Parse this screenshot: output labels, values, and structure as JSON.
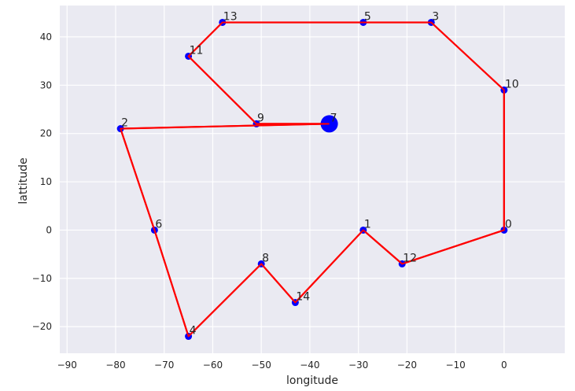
{
  "chart_data": {
    "type": "scatter",
    "title": "",
    "xlabel": "longitude",
    "ylabel": "lattitude",
    "xlim": [
      -91.5,
      12.5
    ],
    "ylim": [
      -25.5,
      46.5
    ],
    "xticks": [
      -90,
      -80,
      -70,
      -60,
      -50,
      -40,
      -30,
      -20,
      -10,
      0
    ],
    "yticks": [
      -20,
      -10,
      0,
      10,
      20,
      30,
      40
    ],
    "grid": true,
    "background": "#eaeaf2",
    "point_color": "#0000ff",
    "path_color": "#ff0000",
    "points": [
      {
        "label": "0",
        "x": 0,
        "y": 0
      },
      {
        "label": "1",
        "x": -29,
        "y": 0
      },
      {
        "label": "2",
        "x": -79,
        "y": 21
      },
      {
        "label": "3",
        "x": -15,
        "y": 43
      },
      {
        "label": "4",
        "x": -65,
        "y": -22
      },
      {
        "label": "5",
        "x": -29,
        "y": 43
      },
      {
        "label": "6",
        "x": -72,
        "y": 0
      },
      {
        "label": "7",
        "x": -36,
        "y": 22,
        "highlight": true
      },
      {
        "label": "8",
        "x": -50,
        "y": -7
      },
      {
        "label": "9",
        "x": -51,
        "y": 22
      },
      {
        "label": "10",
        "x": 0,
        "y": 29
      },
      {
        "label": "11",
        "x": -65,
        "y": 36
      },
      {
        "label": "12",
        "x": -21,
        "y": -7
      },
      {
        "label": "13",
        "x": -58,
        "y": 43
      },
      {
        "label": "14",
        "x": -43,
        "y": -15
      }
    ],
    "route": [
      "7",
      "2",
      "6",
      "4",
      "8",
      "14",
      "1",
      "12",
      "0",
      "10",
      "3",
      "5",
      "13",
      "11",
      "9",
      "7"
    ]
  }
}
